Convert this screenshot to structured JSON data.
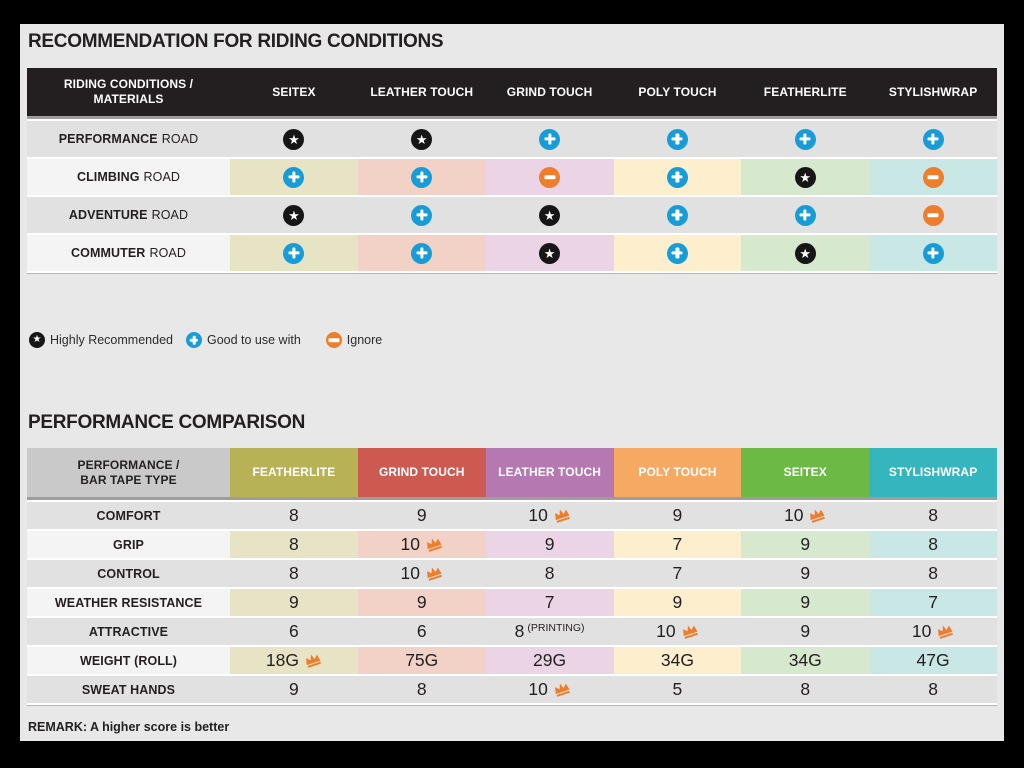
{
  "colors": {
    "frame": "#000000",
    "content_bg": "#e8e8e8",
    "header_black": "#231f20",
    "row_gray": "#e1e1e2",
    "row_light": "#f4f4f4",
    "separator_gray": "#9d9d9d",
    "end_line": "#b5b5b5",
    "badge_star_bg": "#161616",
    "badge_plus_bg": "#189cd8",
    "badge_minus_bg": "#ee7d2c",
    "crown": "#ee7d2c",
    "corner2_bg": "#c9c9c9",
    "column_tints": [
      "#e6e4c5",
      "#f2d1c6",
      "#ecd4e7",
      "#fdeecd",
      "#d6e8ce",
      "#c9e7e4"
    ]
  },
  "section1": {
    "title": "RECOMMENDATION FOR RIDING CONDITIONS",
    "table": {
      "corner_line1": "RIDING CONDITIONS /",
      "corner_line2": "MATERIALS",
      "columns": [
        "SEITEX",
        "LEATHER TOUCH",
        "GRIND TOUCH",
        "POLY TOUCH",
        "FEATHERLITE",
        "STYLISHWRAP"
      ],
      "rows": [
        {
          "condition": "PERFORMANCE",
          "suffix": "ROAD",
          "cells": [
            "star",
            "star",
            "plus",
            "plus",
            "plus",
            "plus"
          ]
        },
        {
          "condition": "CLIMBING",
          "suffix": "ROAD",
          "cells": [
            "plus",
            "plus",
            "minus",
            "plus",
            "star",
            "minus"
          ]
        },
        {
          "condition": "ADVENTURE",
          "suffix": "ROAD",
          "cells": [
            "star",
            "plus",
            "star",
            "plus",
            "plus",
            "minus"
          ]
        },
        {
          "condition": "COMMUTER",
          "suffix": "ROAD",
          "cells": [
            "plus",
            "plus",
            "star",
            "plus",
            "star",
            "plus"
          ]
        }
      ]
    },
    "legend": [
      {
        "icon": "star",
        "label": "Highly Recommended"
      },
      {
        "icon": "plus",
        "label": "Good to use with"
      },
      {
        "icon": "minus",
        "label": "Ignore"
      }
    ]
  },
  "section2": {
    "title": "PERFORMANCE COMPARISON",
    "table": {
      "corner_line1": "PERFORMANCE /",
      "corner_line2": "BAR TAPE TYPE",
      "columns": [
        {
          "label": "FEATHERLITE",
          "color": "#b7b256"
        },
        {
          "label": "GRIND TOUCH",
          "color": "#cd5a50"
        },
        {
          "label": "LEATHER TOUCH",
          "color": "#b678b0"
        },
        {
          "label": "POLY TOUCH",
          "color": "#f5a963"
        },
        {
          "label": "SEITEX",
          "color": "#6cb945"
        },
        {
          "label": "STYLISHWRAP",
          "color": "#35b5bd"
        }
      ],
      "rows": [
        {
          "label": "COMFORT",
          "cells": [
            {
              "value": "8"
            },
            {
              "value": "9"
            },
            {
              "value": "10",
              "crown": true
            },
            {
              "value": "9"
            },
            {
              "value": "10",
              "crown": true
            },
            {
              "value": "8"
            }
          ]
        },
        {
          "label": "GRIP",
          "cells": [
            {
              "value": "8"
            },
            {
              "value": "10",
              "crown": true
            },
            {
              "value": "9"
            },
            {
              "value": "7"
            },
            {
              "value": "9"
            },
            {
              "value": "8"
            }
          ]
        },
        {
          "label": "CONTROL",
          "cells": [
            {
              "value": "8"
            },
            {
              "value": "10",
              "crown": true
            },
            {
              "value": "8"
            },
            {
              "value": "7"
            },
            {
              "value": "9"
            },
            {
              "value": "8"
            }
          ]
        },
        {
          "label": "WEATHER RESISTANCE",
          "cells": [
            {
              "value": "9"
            },
            {
              "value": "9"
            },
            {
              "value": "7"
            },
            {
              "value": "9"
            },
            {
              "value": "9"
            },
            {
              "value": "7"
            }
          ]
        },
        {
          "label": "ATTRACTIVE",
          "cells": [
            {
              "value": "6"
            },
            {
              "value": "6"
            },
            {
              "value": "8",
              "note": "(PRINTING)"
            },
            {
              "value": "10",
              "crown": true
            },
            {
              "value": "9"
            },
            {
              "value": "10",
              "crown": true
            }
          ]
        },
        {
          "label": "WEIGHT (ROLL)",
          "cells": [
            {
              "value": "18G",
              "crown": true
            },
            {
              "value": "75G"
            },
            {
              "value": "29G"
            },
            {
              "value": "34G"
            },
            {
              "value": "34G"
            },
            {
              "value": "47G"
            }
          ]
        },
        {
          "label": "SWEAT HANDS",
          "cells": [
            {
              "value": "9"
            },
            {
              "value": "8"
            },
            {
              "value": "10",
              "crown": true
            },
            {
              "value": "5"
            },
            {
              "value": "8"
            },
            {
              "value": "8"
            }
          ]
        }
      ]
    },
    "remark": "REMARK: A higher score is better"
  }
}
